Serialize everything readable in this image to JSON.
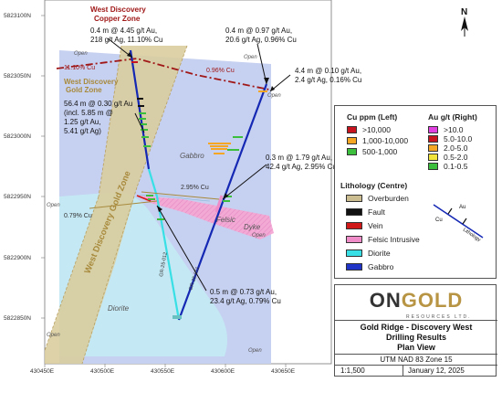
{
  "grid": {
    "y_labels": [
      "5823100N",
      "5823050N",
      "5823000N",
      "5822950N",
      "5822900N",
      "5822850N"
    ],
    "x_labels": [
      "430450E",
      "430500E",
      "430550E",
      "430600E",
      "430650E"
    ]
  },
  "map_labels": {
    "open": "Open",
    "gabbro": "Gabbro",
    "diorite": "Diorite",
    "felsic": "Felsic",
    "dyke": "Dyke",
    "copper_zone_line1": "West Discovery",
    "copper_zone_line2": "Copper Zone",
    "gold_zone_line1": "West Discovery",
    "gold_zone_line2": "Gold Zone",
    "gold_zone_diag": "West Discovery Gold Zone",
    "cu_1110": "11.10% Cu",
    "cu_096": "0.96% Cu",
    "cu_295": "2.95% Cu",
    "cu_079": "0.79% Cu",
    "hole_a": "GR-25-012",
    "hole_b": "GR-25-011"
  },
  "callouts": {
    "c1": [
      "0.4 m @ 4.45 g/t Au,",
      "218 g/t Ag, 11.10% Cu"
    ],
    "c2": [
      "0.4 m @ 0.97 g/t Au,",
      "20.6 g/t Ag, 0.96% Cu"
    ],
    "c3": [
      "4.4 m @ 0.10 g/t Au,",
      "2.4 g/t Ag, 0.16% Cu"
    ],
    "c4": [
      "56.4 m @ 0.30 g/t Au",
      "(incl. 5.85 m @",
      "1.25 g/t Au,",
      "5.41 g/t Ag)"
    ],
    "c5": [
      "0.3 m @ 1.79 g/t Au,",
      "42.4 g/t Ag, 2.95% Cu"
    ],
    "c6": [
      "0.5 m @ 0.73 g/t Au,",
      "23.4 g/t Ag, 0.79% Cu"
    ]
  },
  "north_arrow": "N",
  "legend": {
    "cu_title": "Cu ppm (Left)",
    "au_title": "Au g/t (Right)",
    "cu_items": [
      {
        "label": ">10,000",
        "color": "#c8141e"
      },
      {
        "label": "1,000-10,000",
        "color": "#f5a623"
      },
      {
        "label": "500-1,000",
        "color": "#3cbf3c"
      }
    ],
    "au_items": [
      {
        "label": ">10.0",
        "color": "#e040e0"
      },
      {
        "label": "5.0-10.0",
        "color": "#c8141e"
      },
      {
        "label": "2.0-5.0",
        "color": "#f5a623"
      },
      {
        "label": "0.5-2.0",
        "color": "#f2e33a"
      },
      {
        "label": "0.1-0.5",
        "color": "#3cbf3c"
      }
    ],
    "lith_title": "Lithology (Centre)",
    "lith_items": [
      {
        "label": "Overburden",
        "color": "#cbbd8f"
      },
      {
        "label": "Fault",
        "color": "#111111"
      },
      {
        "label": "Vein",
        "color": "#d01818"
      },
      {
        "label": "Felsic Intrusive",
        "color": "#f08cc8"
      },
      {
        "label": "Diorite",
        "color": "#38e0e6"
      },
      {
        "label": "Gabbro",
        "color": "#2035c8"
      }
    ],
    "symbol_cu": "Cu",
    "symbol_au": "Au",
    "symbol_lith": "Lithology"
  },
  "titleblock": {
    "logo_on": "ON",
    "logo_gold": "GOLD",
    "logo_sub": "RESOURCES LTD.",
    "title_lines": [
      "Gold Ridge - Discovery West",
      "Drilling Results",
      "Plan View"
    ],
    "utm": "UTM NAD 83 Zone 15",
    "scale": "1:1,500",
    "date": "January 12, 2025"
  },
  "colors": {
    "gabbro_fill": "#c6d0f0",
    "diorite_fill": "#c4e8f4",
    "overburden_fill": "#d9cc9c",
    "felsic_fill": "#f4a8d4",
    "drill_blue": "#1428b4",
    "copper_zone_red": "#a01818",
    "gold_zone_tan": "#a88a3c"
  }
}
